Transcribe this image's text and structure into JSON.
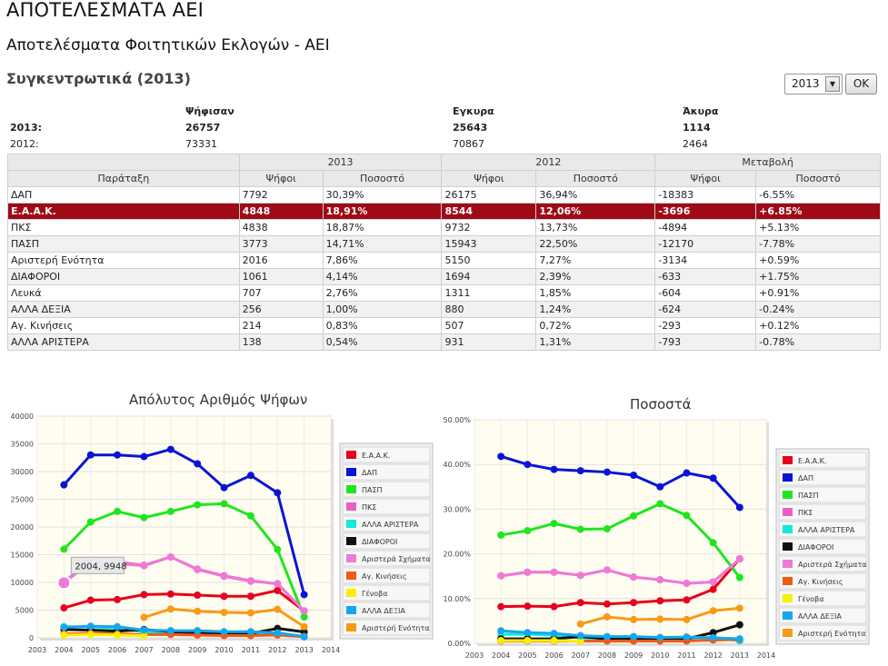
{
  "page": {
    "title": "ΑΠΟΤΕΛΕΣΜΑΤΑ ΑΕΙ",
    "subtitle": "Αποτελέσματα Φοιτητικών Εκλογών - ΑΕΙ",
    "section": "Συγκεντρωτικά (2013)"
  },
  "controls": {
    "year": "2013",
    "ok": "OK"
  },
  "summary": {
    "headers": [
      "Ψήφισαν",
      "Εγκυρα",
      "Άκυρα"
    ],
    "rows": [
      {
        "label": "2013:",
        "voted": "26757",
        "valid": "25643",
        "invalid": "1114"
      },
      {
        "label": "2012:",
        "voted": "73331",
        "valid": "70867",
        "invalid": "2464"
      }
    ]
  },
  "table": {
    "group_headers": [
      "2013",
      "2012",
      "Μεταβολή"
    ],
    "headers": [
      "Παράταξη",
      "Ψήφοι",
      "Ποσοστό",
      "Ψήφοι",
      "Ποσοστό",
      "Ψήφοι",
      "Ποσοστό"
    ],
    "rows": [
      [
        "ΔΑΠ",
        "7792",
        "30,39%",
        "26175",
        "36,94%",
        "-18383",
        "-6.55%"
      ],
      [
        "Ε.Α.Α.Κ.",
        "4848",
        "18,91%",
        "8544",
        "12,06%",
        "-3696",
        "+6.85%"
      ],
      [
        "ΠΚΣ",
        "4838",
        "18,87%",
        "9732",
        "13,73%",
        "-4894",
        "+5.13%"
      ],
      [
        "ΠΑΣΠ",
        "3773",
        "14,71%",
        "15943",
        "22,50%",
        "-12170",
        "-7.78%"
      ],
      [
        "Αριστερή Ενότητα",
        "2016",
        "7,86%",
        "5150",
        "7,27%",
        "-3134",
        "+0.59%"
      ],
      [
        "ΔΙΑΦΟΡΟΙ",
        "1061",
        "4,14%",
        "1694",
        "2,39%",
        "-633",
        "+1.75%"
      ],
      [
        "Λευκά",
        "707",
        "2,76%",
        "1311",
        "1,85%",
        "-604",
        "+0.91%"
      ],
      [
        "ΑΛΛΑ ΔΕΞΙΑ",
        "256",
        "1,00%",
        "880",
        "1,24%",
        "-624",
        "-0.24%"
      ],
      [
        "Αγ. Κινήσεις",
        "214",
        "0,83%",
        "507",
        "0,72%",
        "-293",
        "+0.12%"
      ],
      [
        "ΑΛΛΑ ΑΡΙΣΤΕΡΑ",
        "138",
        "0,54%",
        "931",
        "1,31%",
        "-793",
        "-0.78%"
      ]
    ]
  },
  "colors": {
    "highlight": "#9e0a16"
  },
  "chart_data": [
    {
      "type": "line",
      "title": "Απόλυτος Αριθμός Ψήφων",
      "x": [
        2004,
        2005,
        2006,
        2007,
        2008,
        2009,
        2010,
        2011,
        2012,
        2013
      ],
      "xticks": [
        "2003",
        "2004",
        "2005",
        "2006",
        "2007",
        "2008",
        "2009",
        "2010",
        "2011",
        "2012",
        "2013",
        "2014"
      ],
      "xlim": [
        2003,
        2014
      ],
      "ylim": [
        0,
        40000
      ],
      "yticks": [
        "0",
        "5000",
        "10000",
        "15000",
        "20000",
        "25000",
        "30000",
        "35000",
        "40000"
      ],
      "tooltip": "2004, 9948",
      "series": [
        {
          "name": "Ε.Α.Α.Κ.",
          "color": "#e8001c",
          "values": [
            5400,
            6800,
            6900,
            7800,
            7900,
            7700,
            7500,
            7500,
            8544,
            4848
          ]
        },
        {
          "name": "ΔΑΠ",
          "color": "#0a14d6",
          "values": [
            27600,
            33000,
            33000,
            32700,
            34000,
            31400,
            27100,
            29300,
            26175,
            7792
          ]
        },
        {
          "name": "ΠΑΣΠ",
          "color": "#1ee61e",
          "values": [
            16000,
            20900,
            22800,
            21700,
            22800,
            24000,
            24200,
            22000,
            15943,
            3773
          ]
        },
        {
          "name": "ΠΚΣ",
          "color": "#e860c4",
          "values": [
            10200,
            13600,
            13700,
            13100,
            14600,
            12400,
            11200,
            10300,
            9732,
            4838
          ]
        },
        {
          "name": "ΑΛΛΑ ΑΡΙΣΤΕΡΑ",
          "color": "#16e8d8",
          "values": [
            2000,
            2000,
            1700,
            1100,
            900,
            900,
            700,
            600,
            931,
            138
          ]
        },
        {
          "name": "ΔΙΑΦΟΡΟΙ",
          "color": "#111111",
          "values": [
            1500,
            1400,
            1200,
            1500,
            1100,
            900,
            700,
            800,
            1694,
            1061
          ]
        },
        {
          "name": "Αριστερά Σχήματα",
          "color": "#ee7ad6",
          "values": [
            9948,
            13600,
            13400,
            13000,
            14600,
            12300,
            11100,
            10200,
            9800,
            4838
          ]
        },
        {
          "name": "Αγ. Κινήσεις",
          "color": "#f05a14",
          "values": [
            700,
            800,
            700,
            600,
            600,
            500,
            400,
            400,
            507,
            214
          ]
        },
        {
          "name": "Γένοβα",
          "color": "#f8f000",
          "values": [
            500,
            600,
            500,
            400,
            null,
            null,
            null,
            null,
            null,
            null
          ]
        },
        {
          "name": "ΑΛΛΑ ΔΕΞΙΑ",
          "color": "#16a6ee",
          "values": [
            1900,
            2100,
            2000,
            1400,
            1300,
            1300,
            1100,
            1100,
            880,
            256
          ]
        },
        {
          "name": "Αριστερή Ενότητα",
          "color": "#f89a16",
          "values": [
            null,
            null,
            null,
            3700,
            5200,
            4800,
            4600,
            4500,
            5150,
            2016
          ]
        }
      ]
    },
    {
      "type": "line",
      "title": "Ποσοστά",
      "x": [
        2004,
        2005,
        2006,
        2007,
        2008,
        2009,
        2010,
        2011,
        2012,
        2013
      ],
      "xticks": [
        "2003",
        "2004",
        "2005",
        "2006",
        "2007",
        "2008",
        "2009",
        "2010",
        "2011",
        "2012",
        "2013",
        "2014"
      ],
      "xlim": [
        2003,
        2014
      ],
      "ylim": [
        0,
        50
      ],
      "yticks": [
        "0.00%",
        "10.00%",
        "20.00%",
        "30.00%",
        "40.00%",
        "50.00%"
      ],
      "series": [
        {
          "name": "Ε.Α.Α.Κ.",
          "color": "#e8001c",
          "values": [
            8.2,
            8.3,
            8.2,
            9.1,
            8.8,
            9.1,
            9.5,
            9.7,
            12.06,
            18.91
          ]
        },
        {
          "name": "ΔΑΠ",
          "color": "#0a14d6",
          "values": [
            41.8,
            40.0,
            38.9,
            38.6,
            38.3,
            37.6,
            35.0,
            38.1,
            36.94,
            30.39
          ]
        },
        {
          "name": "ΠΑΣΠ",
          "color": "#1ee61e",
          "values": [
            24.2,
            25.2,
            26.8,
            25.5,
            25.6,
            28.5,
            31.2,
            28.6,
            22.5,
            14.71
          ]
        },
        {
          "name": "ΠΚΣ",
          "color": "#e860c4",
          "values": [
            15.1,
            15.9,
            15.9,
            15.2,
            16.4,
            14.8,
            14.2,
            13.4,
            13.73,
            18.87
          ]
        },
        {
          "name": "ΑΛΛΑ ΑΡΙΣΤΕΡΑ",
          "color": "#16e8d8",
          "values": [
            2.0,
            2.0,
            1.8,
            1.2,
            1.1,
            1.0,
            0.9,
            0.8,
            1.31,
            0.54
          ]
        },
        {
          "name": "ΔΙΑΦΟΡΟΙ",
          "color": "#111111",
          "values": [
            1.0,
            1.0,
            1.0,
            1.5,
            1.0,
            1.0,
            1.0,
            1.0,
            2.39,
            4.14
          ]
        },
        {
          "name": "Αριστερά Σχήματα",
          "color": "#ee7ad6",
          "values": [
            15.1,
            15.9,
            15.9,
            15.2,
            16.4,
            14.8,
            14.2,
            13.4,
            13.73,
            18.87
          ]
        },
        {
          "name": "Αγ. Κινήσεις",
          "color": "#f05a14",
          "values": [
            0.5,
            0.5,
            0.5,
            0.5,
            0.5,
            0.5,
            0.5,
            0.5,
            0.72,
            0.83
          ]
        },
        {
          "name": "Γένοβα",
          "color": "#f8f000",
          "values": [
            0.6,
            0.6,
            0.6,
            0.5,
            null,
            null,
            null,
            null,
            null,
            null
          ]
        },
        {
          "name": "ΑΛΛΑ ΔΕΞΙΑ",
          "color": "#16a6ee",
          "values": [
            2.8,
            2.4,
            2.2,
            1.7,
            1.5,
            1.5,
            1.3,
            1.4,
            1.24,
            1.0
          ]
        },
        {
          "name": "Αριστερή Ενότητα",
          "color": "#f89a16",
          "values": [
            null,
            null,
            null,
            4.3,
            5.9,
            5.3,
            5.4,
            5.3,
            7.27,
            7.86
          ]
        }
      ]
    }
  ]
}
